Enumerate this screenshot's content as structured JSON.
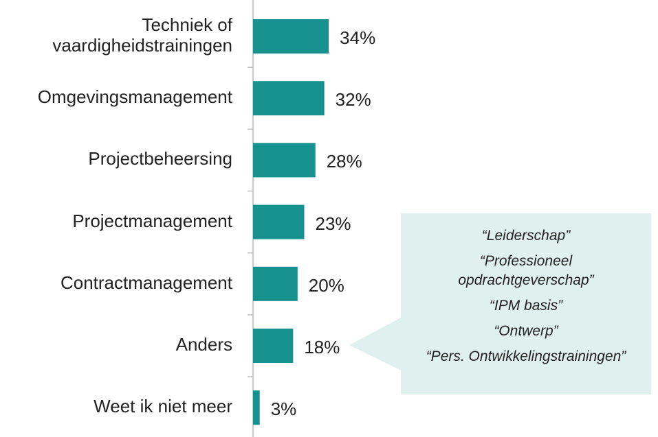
{
  "chart_data": {
    "type": "hbar",
    "categories": [
      "Techniek of vaardigheidstrainingen",
      "Omgevingsmanagement",
      "Projectbeheersing",
      "Projectmanagement",
      "Contractmanagement",
      "Anders",
      "Weet ik niet meer"
    ],
    "values": [
      34,
      32,
      28,
      23,
      20,
      18,
      3
    ],
    "value_labels": [
      "34%",
      "32%",
      "28%",
      "23%",
      "20%",
      "18%",
      "3%"
    ],
    "color": "#16918f",
    "annotation": [
      "“Leiderschap”",
      "“Professioneel",
      "opdrachtgeverschap”",
      "“IPM basis”",
      "“Ontwerp”",
      "“Pers. Ontwikkelingstrainingen”"
    ]
  }
}
